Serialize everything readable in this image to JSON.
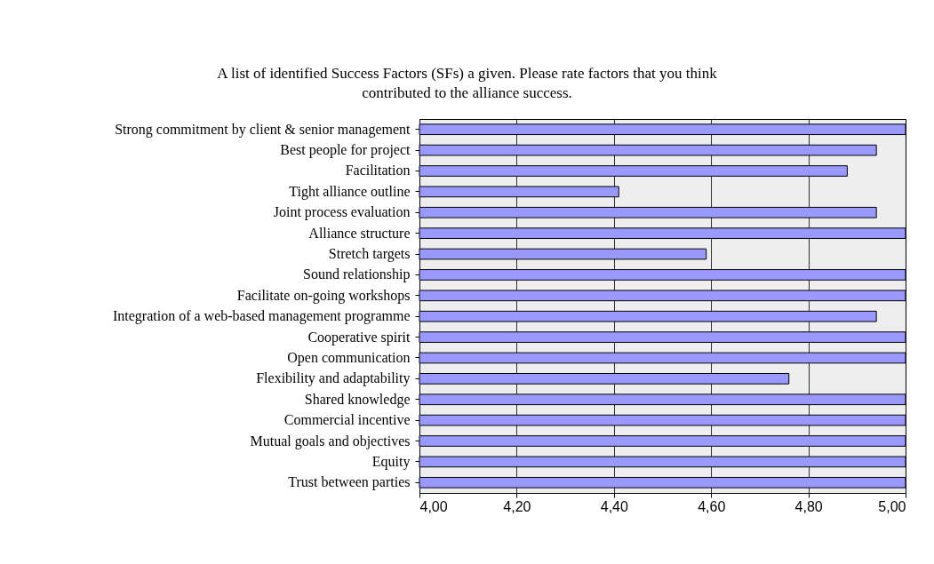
{
  "chart_data": {
    "type": "bar",
    "orientation": "horizontal",
    "title": "A list of identified Success Factors (SFs) a given. Please rate factors that you think contributed to the alliance success.",
    "categories": [
      "Strong commitment by client & senior management",
      "Best people for project",
      "Facilitation",
      "Tight alliance outline",
      "Joint process evaluation",
      "Alliance structure",
      "Stretch targets",
      "Sound relationship",
      "Facilitate on-going workshops",
      "Integration of a web-based management programme",
      "Cooperative spirit",
      "Open communication",
      "Flexibility and adaptability",
      "Shared knowledge",
      "Commercial incentive",
      "Mutual goals and objectives",
      "Equity",
      "Trust between parties"
    ],
    "values": [
      5,
      4.94,
      4.88,
      4.41,
      4.94,
      5,
      4.59,
      5,
      5,
      4.94,
      5,
      5,
      4.76,
      5,
      5,
      5,
      5,
      5
    ],
    "color": "#9999ff",
    "xlim": [
      4,
      5
    ],
    "xticks": [
      {
        "value": 4,
        "label": "4,00"
      },
      {
        "value": 4.2,
        "label": "4,20"
      },
      {
        "value": 4.4,
        "label": "4,40"
      },
      {
        "value": 4.6,
        "label": "4,60"
      },
      {
        "value": 4.8,
        "label": "4,80"
      },
      {
        "value": 5,
        "label": "5,00"
      }
    ],
    "grid": "x"
  }
}
